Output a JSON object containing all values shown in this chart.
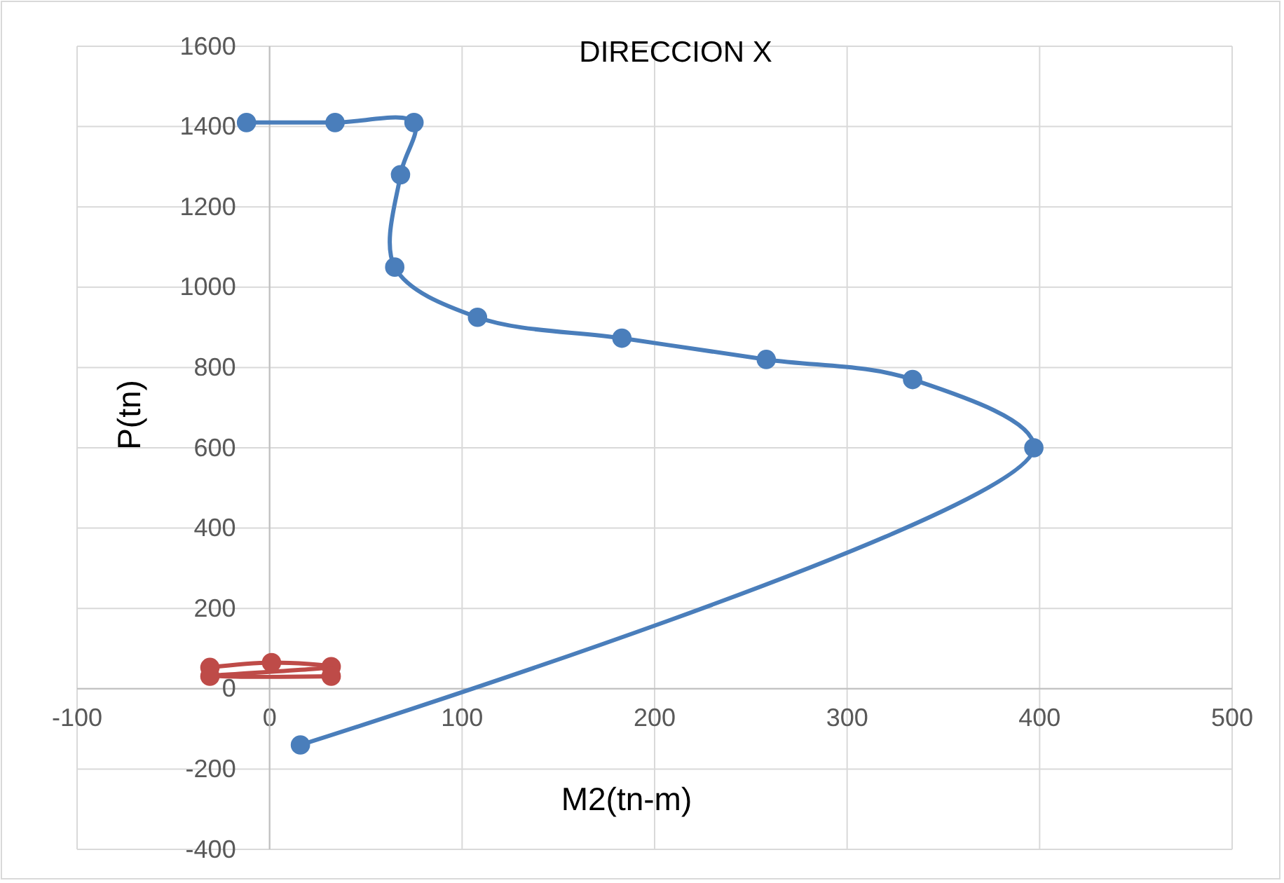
{
  "chart_data": {
    "type": "line",
    "title": "DIRECCION X",
    "xlabel": "M2(tn-m)",
    "ylabel": "P(tn)",
    "xlim": [
      -100,
      500
    ],
    "xticks": [
      -100,
      0,
      100,
      200,
      300,
      400,
      500
    ],
    "ylim": [
      -400,
      1600
    ],
    "yticks": [
      -400,
      -200,
      0,
      200,
      400,
      600,
      800,
      1000,
      1200,
      1400,
      1600
    ],
    "grid": true,
    "marker": "circle",
    "series": [
      {
        "color": "#4a7ebb",
        "x": [
          -12,
          34,
          75,
          68,
          65,
          108,
          183,
          258,
          334,
          397,
          16
        ],
        "values": [
          1410,
          1410,
          1410,
          1280,
          1050,
          925,
          873,
          820,
          770,
          600,
          -140
        ]
      },
      {
        "color": "#be4b48",
        "x": [
          -31,
          1,
          32,
          -31,
          32
        ],
        "values": [
          53,
          65,
          55,
          31,
          31
        ]
      }
    ]
  }
}
